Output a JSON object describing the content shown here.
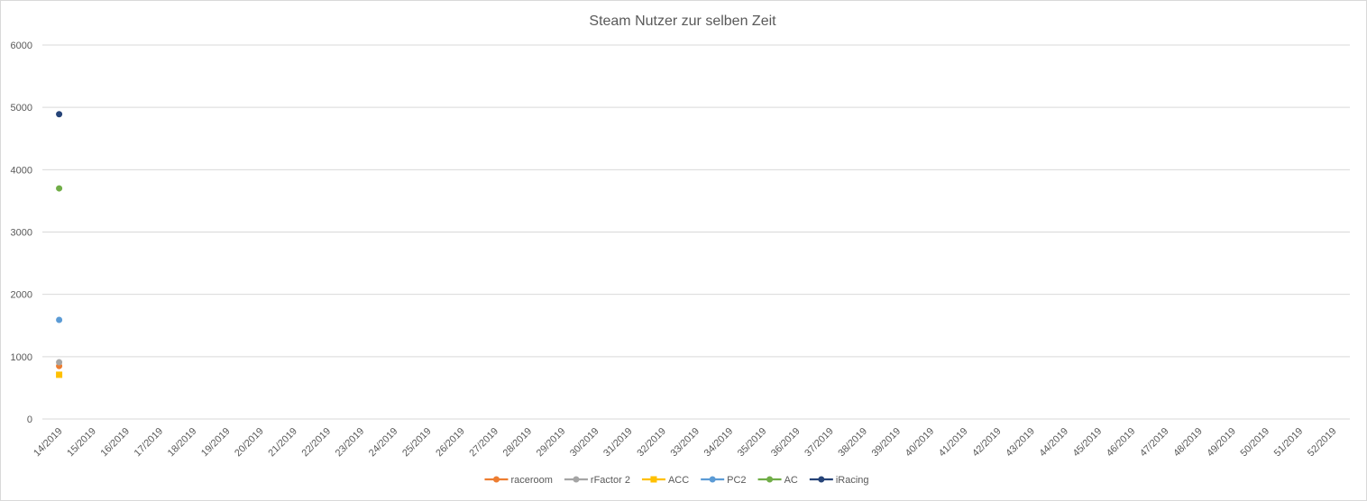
{
  "chart_data": {
    "type": "scatter",
    "title": "Steam Nutzer zur selben Zeit",
    "xlabel": "",
    "ylabel": "",
    "ylim": [
      0,
      6000
    ],
    "yticks": [
      0,
      1000,
      2000,
      3000,
      4000,
      5000,
      6000
    ],
    "categories": [
      "14/2019",
      "15/2019",
      "16/2019",
      "17/2019",
      "18/2019",
      "19/2019",
      "20/2019",
      "21/2019",
      "22/2019",
      "23/2019",
      "24/2019",
      "25/2019",
      "26/2019",
      "27/2019",
      "28/2019",
      "29/2019",
      "30/2019",
      "31/2019",
      "32/2019",
      "33/2019",
      "34/2019",
      "35/2019",
      "36/2019",
      "37/2019",
      "38/2019",
      "39/2019",
      "40/2019",
      "41/2019",
      "42/2019",
      "43/2019",
      "44/2019",
      "45/2019",
      "46/2019",
      "47/2019",
      "48/2019",
      "49/2019",
      "50/2019",
      "51/2019",
      "52/2019"
    ],
    "grid": true,
    "legend_position": "bottom",
    "series": [
      {
        "name": "raceroom",
        "color": "#ed7d31",
        "marker": "circle",
        "values": [
          850
        ]
      },
      {
        "name": "rFactor 2",
        "color": "#a5a5a5",
        "marker": "circle",
        "values": [
          910
        ]
      },
      {
        "name": "ACC",
        "color": "#ffc000",
        "marker": "square",
        "values": [
          710
        ]
      },
      {
        "name": "PC2",
        "color": "#5b9bd5",
        "marker": "circle",
        "values": [
          1590
        ]
      },
      {
        "name": "AC",
        "color": "#70ad47",
        "marker": "circle",
        "values": [
          3700
        ]
      },
      {
        "name": "iRacing",
        "color": "#264478",
        "marker": "circle",
        "values": [
          4890
        ]
      }
    ]
  }
}
